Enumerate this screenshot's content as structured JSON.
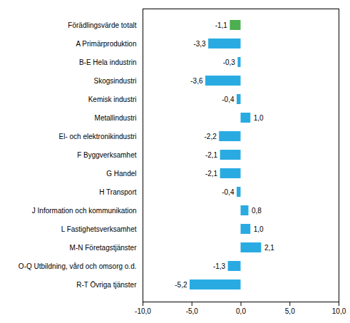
{
  "chart_data": {
    "type": "bar",
    "orientation": "horizontal",
    "categories": [
      "Förädlingsvärde totalt",
      "A Primärproduktion",
      "B-E Hela industrin",
      "Skogsindustri",
      "Kemisk industri",
      "Metallindustri",
      "El- och elektronikindustri",
      "F Byggverksamhet",
      "G Handel",
      "H Transport",
      "J Information och kommunikation",
      "L Fastighetsverksamhet",
      "M-N Företagstjänster",
      "O-Q Utbildning, vård och omsorg o.d.",
      "R-T Övriga tjänster"
    ],
    "values": [
      -1.1,
      -3.3,
      -0.3,
      -3.6,
      -0.4,
      1.0,
      -2.2,
      -2.1,
      -2.1,
      -0.4,
      0.8,
      1.0,
      2.1,
      -1.3,
      -5.2
    ],
    "value_labels": [
      "-1,1",
      "-3,3",
      "-0,3",
      "-3,6",
      "-0,4",
      "1,0",
      "-2,2",
      "-2,1",
      "-2,1",
      "-0,4",
      "0,8",
      "1,0",
      "2,1",
      "-1,3",
      "-5,2"
    ],
    "colors": [
      "#4caf50",
      "#29abe2",
      "#29abe2",
      "#29abe2",
      "#29abe2",
      "#29abe2",
      "#29abe2",
      "#29abe2",
      "#29abe2",
      "#29abe2",
      "#29abe2",
      "#29abe2",
      "#29abe2",
      "#29abe2",
      "#29abe2"
    ],
    "xlim": [
      -10.0,
      10.0
    ],
    "xticks": [
      {
        "value": -10.0,
        "label": "-10,0"
      },
      {
        "value": -5.0,
        "label": "-5,0"
      },
      {
        "value": 0.0,
        "label": "0,0"
      },
      {
        "value": 5.0,
        "label": "5,0"
      },
      {
        "value": 10.0,
        "label": "10,0"
      }
    ],
    "grid": false,
    "data_labels": true
  }
}
